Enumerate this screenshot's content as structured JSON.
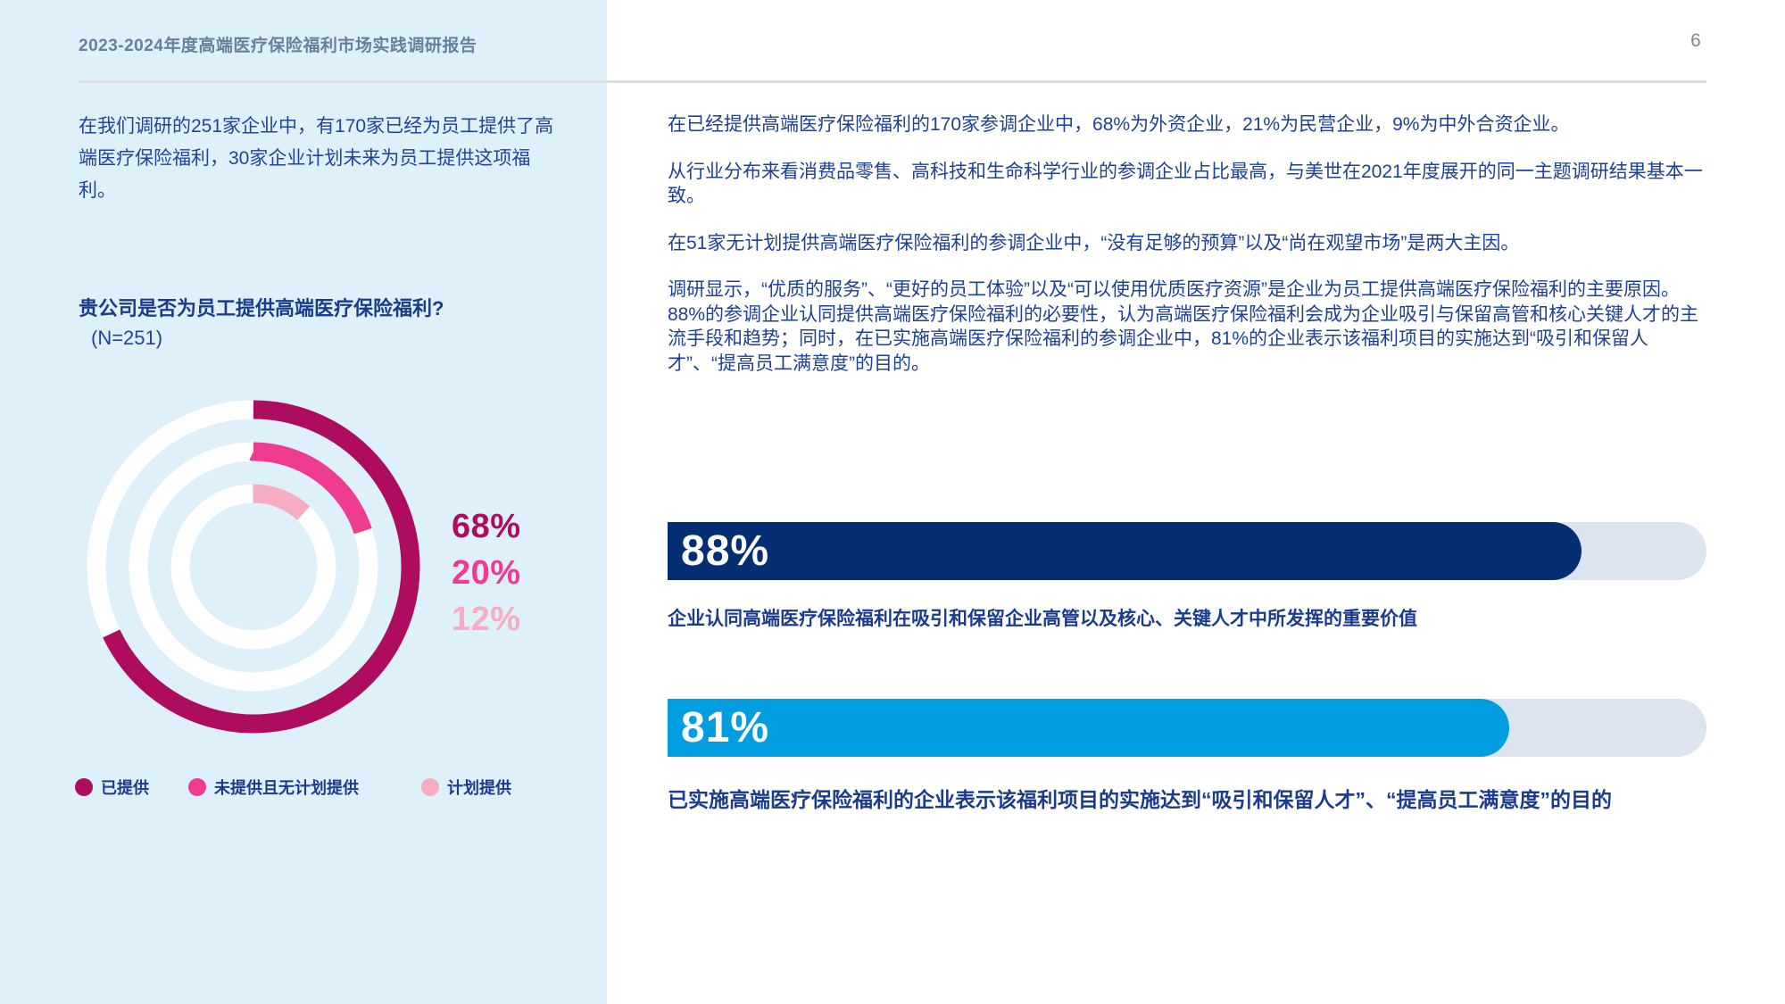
{
  "page": {
    "header_title": "2023-2024年度高端医疗保险福利市场实践调研报告",
    "page_number": "6"
  },
  "sidebar": {
    "intro": "在我们调研的251家企业中，有170家已经为员工提供了高端医疗保险福利，30家企业计划未来为员工提供这项福利。"
  },
  "main": {
    "paragraphs": [
      "在已经提供高端医疗保险福利的170家参调企业中，68%为外资企业，21%为民营企业，9%为中外合资企业。",
      "从行业分布来看消费品零售、高科技和生命科学行业的参调企业占比最高，与美世在2021年度展开的同一主题调研结果基本一致。",
      "在51家无计划提供高端医疗保险福利的参调企业中，“没有足够的预算”以及“尚在观望市场”是两大主因。",
      "调研显示，“优质的服务”、“更好的员工体验”以及“可以使用优质医疗资源”是企业为员工提供高端医疗保险福利的主要原因。88%的参调企业认同提供高端医疗保险福利的必要性，认为高端医疗保险福利会成为企业吸引与保留高管和核心关键人才的主流手段和趋势；同时，在已实施高端医疗保险福利的参调企业中，81%的企业表示该福利项目的实施达到“吸引和保留人才”、“提高员工满意度”的目的。"
    ]
  },
  "chart_data": [
    {
      "type": "pie",
      "variant": "concentric-donut",
      "title": "贵公司是否为员工提供高端医疗保险福利?",
      "sample": "(N=251)",
      "series": [
        {
          "name": "已提供",
          "value": 68,
          "label": "68%",
          "color": "#AE0D5F"
        },
        {
          "name": "未提供且无计划提供",
          "value": 20,
          "label": "20%",
          "color": "#EE3D8F"
        },
        {
          "name": "计划提供",
          "value": 12,
          "label": "12%",
          "color": "#F6ACC2"
        }
      ],
      "legend_position": "bottom",
      "start_angle": "top",
      "direction": "clockwise"
    },
    {
      "type": "bar",
      "variant": "single-horizontal",
      "value": 88,
      "label": "88%",
      "color": "#042E72",
      "track_color": "#DCE4EF",
      "caption": "企业认同高端医疗保险福利在吸引和保留企业高管以及核心、关键人才中所发挥的重要价值"
    },
    {
      "type": "bar",
      "variant": "single-horizontal",
      "value": 81,
      "label": "81%",
      "color": "#009DE0",
      "track_color": "#DCE4EF",
      "caption": "已实施高端医疗保险福利的企业表示该福利项目的实施达到“吸引和保留人才”、“提高员工满意度”的目的"
    }
  ]
}
